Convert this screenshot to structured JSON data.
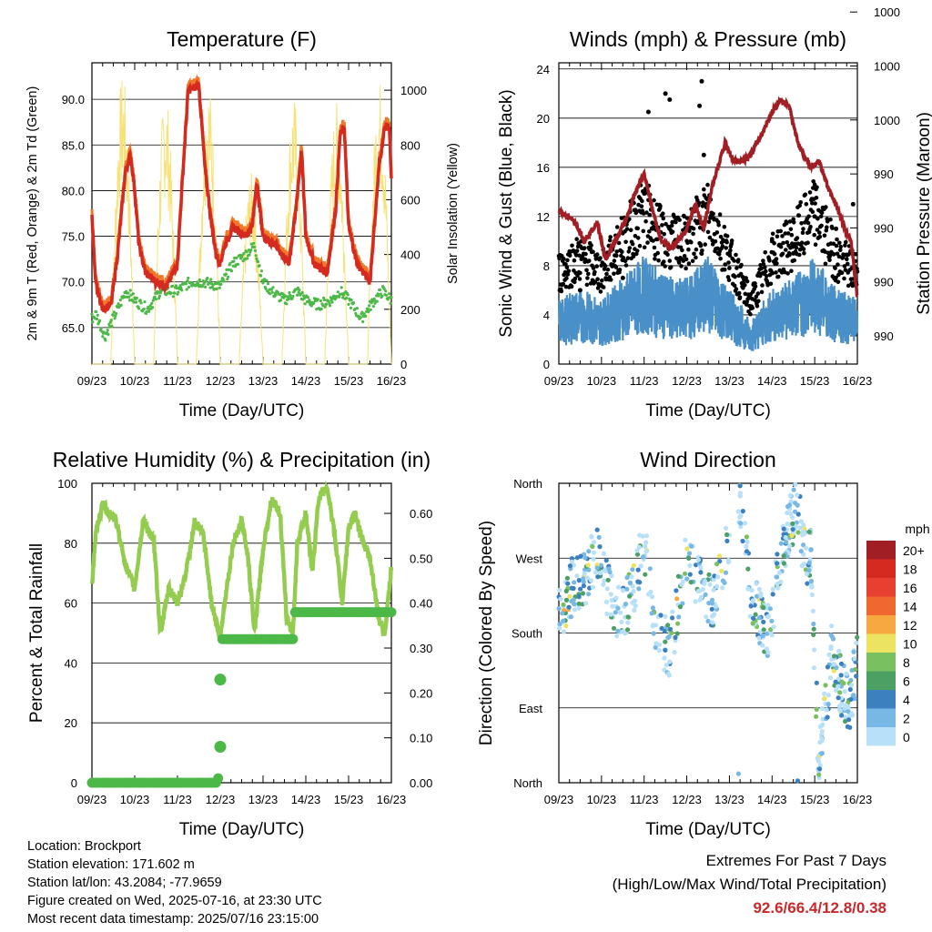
{
  "chart_data": [
    {
      "type": "line",
      "title": "Temperature (F)",
      "xlabel": "Time (Day/UTC)",
      "ylabel_left": "2m & 9m T (Red, Orange) & 2m Td (Green)",
      "ylabel_right": "Solar Insolation (Yellow)",
      "x_ticks": [
        "09/23",
        "10/23",
        "11/23",
        "12/23",
        "13/23",
        "14/23",
        "15/23",
        "16/23"
      ],
      "ylim_left": [
        61.0,
        94.0
      ],
      "ylim_right": [
        0,
        1100
      ],
      "yticks_left": [
        "65.0",
        "70.0",
        "75.0",
        "80.0",
        "85.0",
        "90.0"
      ],
      "yticks_right": [
        "0",
        "200",
        "400",
        "600",
        "800",
        "1000"
      ],
      "colors": {
        "t2m": "#d42a20",
        "t9m": "#f07828",
        "td": "#4cb848",
        "solar": "#f7e27a"
      },
      "series": [
        {
          "name": "2m T",
          "key": "t2m",
          "x": [
            0,
            0.08,
            0.25,
            0.45,
            0.6,
            0.78,
            0.9,
            1.0,
            1.1,
            1.25,
            1.5,
            1.75,
            2.0,
            2.1,
            2.25,
            2.5,
            2.65,
            2.78,
            2.9,
            3.0,
            3.1,
            3.3,
            3.6,
            3.75,
            3.85,
            4.0,
            4.3,
            4.6,
            4.75,
            4.9,
            5.0,
            5.2,
            5.5,
            5.7,
            5.8,
            5.9,
            6.0,
            6.2,
            6.5,
            6.72,
            6.85,
            6.95,
            7.0
          ],
          "values": [
            77.5,
            70,
            67,
            67.5,
            73,
            82,
            84,
            80,
            74,
            71,
            70,
            69.5,
            72,
            80,
            91,
            91.5,
            82,
            77,
            73,
            72,
            74,
            76,
            75,
            76,
            81,
            75,
            74,
            72,
            77,
            84.5,
            75,
            72,
            71,
            78,
            86,
            87,
            76,
            72,
            70,
            83,
            87,
            87,
            81
          ]
        },
        {
          "name": "Solar",
          "key": "solar",
          "peaks": [
            0.72,
            1.72,
            2.72,
            3.72,
            4.72,
            5.72,
            6.72
          ],
          "peak_values": [
            1060,
            1000,
            1040,
            700,
            980,
            960,
            1050
          ]
        },
        {
          "name": "2m Td",
          "key": "td",
          "x": [
            0,
            0.1,
            0.3,
            0.5,
            0.8,
            1.0,
            1.3,
            1.6,
            2.0,
            2.3,
            2.6,
            3.0,
            3.3,
            3.6,
            3.8,
            4.0,
            4.2,
            4.5,
            4.8,
            5.0,
            5.3,
            5.6,
            5.8,
            6.0,
            6.3,
            6.6,
            6.8,
            7.0
          ],
          "values": [
            66,
            66.5,
            64,
            66,
            69,
            68,
            67,
            69,
            69,
            70,
            70,
            69.5,
            72,
            73,
            74,
            70,
            69,
            68,
            69,
            68,
            67.5,
            68,
            69,
            68,
            66,
            68,
            69,
            68
          ]
        }
      ]
    },
    {
      "type": "line",
      "title": "Winds (mph) & Pressure (mb)",
      "xlabel": "Time (Day/UTC)",
      "ylabel_left": "Sonic Wind & Gust (Blue, Black)",
      "ylabel_right": "Station Pressure (Maroon)",
      "x_ticks": [
        "09/23",
        "10/23",
        "11/23",
        "12/23",
        "13/23",
        "14/23",
        "15/23",
        "16/23"
      ],
      "ylim_left": [
        0,
        24.5
      ],
      "yticks_left": [
        "0",
        "4",
        "8",
        "12",
        "16",
        "20",
        "24"
      ],
      "yticks_right": [
        "990",
        "990",
        "990",
        "990",
        "1000",
        "1000",
        "1000"
      ],
      "colors": {
        "wind": "#4a90c8",
        "gust": "#000000",
        "pressure": "#a01e24"
      },
      "series": [
        {
          "name": "Pressure",
          "key": "pressure",
          "x": [
            0,
            0.2,
            0.4,
            0.6,
            0.9,
            1.1,
            1.4,
            1.6,
            1.8,
            2.0,
            2.2,
            2.4,
            2.6,
            2.8,
            3.0,
            3.2,
            3.4,
            3.6,
            3.9,
            4.1,
            4.3,
            4.5,
            4.8,
            5.0,
            5.2,
            5.4,
            5.6,
            5.9,
            6.1,
            6.3,
            6.5,
            6.7,
            6.85,
            6.95,
            7.0
          ],
          "values": [
            12.5,
            12,
            11.5,
            10,
            11.5,
            8.5,
            10.5,
            12,
            14,
            15.5,
            12.5,
            10,
            9.5,
            10,
            11,
            13,
            11,
            14.5,
            18,
            16.5,
            16.5,
            17,
            19,
            20.5,
            21.5,
            21,
            18,
            16,
            16.5,
            14.5,
            13,
            11,
            10,
            7,
            5.5
          ]
        },
        {
          "name": "Sonic Wind",
          "key": "wind",
          "x": [
            0,
            0.5,
            1.0,
            1.5,
            2.0,
            2.5,
            3.0,
            3.5,
            4.0,
            4.5,
            5.0,
            5.5,
            6.0,
            6.5,
            7.0
          ],
          "values": [
            3,
            3.5,
            3,
            4,
            5,
            4,
            4,
            5,
            3.5,
            2,
            3.5,
            4,
            5,
            3.5,
            3
          ]
        },
        {
          "name": "Gust",
          "key": "gust",
          "x": [
            0.5,
            1.5,
            2.1,
            2.5,
            2.6,
            3.3,
            3.35,
            3.4,
            4.0,
            5.0,
            5.5,
            6.0,
            6.5,
            6.9
          ],
          "values": [
            6,
            7,
            20.5,
            22,
            21.5,
            21,
            23,
            17,
            9,
            10,
            9,
            12,
            11,
            13
          ]
        }
      ]
    },
    {
      "type": "line",
      "title": "Relative Humidity (%) & Precipitation (in)",
      "xlabel": "Time (Day/UTC)",
      "ylabel_left": "Percent & Total Rainfall",
      "x_ticks": [
        "09/23",
        "10/23",
        "11/23",
        "12/23",
        "13/23",
        "14/23",
        "15/23",
        "16/23"
      ],
      "ylim_left": [
        0,
        100
      ],
      "ylim_right": [
        0,
        0.667
      ],
      "yticks_left": [
        "0",
        "20",
        "40",
        "60",
        "80",
        "100"
      ],
      "yticks_right": [
        "0.00",
        "0.10",
        "0.20",
        "0.30",
        "0.40",
        "0.50",
        "0.60"
      ],
      "colors": {
        "rh": "#94cc50",
        "precip": "#4cb848"
      },
      "series": [
        {
          "name": "RH",
          "key": "rh",
          "x": [
            0,
            0.1,
            0.25,
            0.4,
            0.55,
            0.8,
            1.0,
            1.2,
            1.45,
            1.6,
            1.8,
            2.0,
            2.2,
            2.4,
            2.6,
            2.8,
            3.0,
            3.1,
            3.3,
            3.5,
            3.65,
            3.8,
            4.0,
            4.2,
            4.4,
            4.55,
            4.7,
            4.8,
            5.0,
            5.15,
            5.3,
            5.5,
            5.7,
            5.85,
            6.0,
            6.15,
            6.3,
            6.5,
            6.7,
            6.85,
            7.0
          ],
          "values": [
            65,
            85,
            93,
            90,
            88,
            72,
            65,
            88,
            80,
            50,
            65,
            60,
            70,
            87,
            83,
            60,
            48,
            60,
            80,
            88,
            75,
            50,
            78,
            95,
            90,
            55,
            50,
            80,
            90,
            70,
            95,
            99,
            80,
            60,
            85,
            90,
            82,
            75,
            55,
            50,
            72
          ]
        },
        {
          "name": "Precipitation",
          "key": "precip",
          "x": [
            0,
            2.9,
            2.95,
            2.97,
            3.0,
            3.02,
            3.05,
            4.7,
            4.73,
            4.76,
            5.5,
            7.0
          ],
          "values": [
            0,
            0,
            0.01,
            0.08,
            0.23,
            0.31,
            0.32,
            0.32,
            0.38,
            0.38,
            0.38,
            0.38
          ]
        }
      ]
    },
    {
      "type": "scatter",
      "title": "Wind Direction",
      "xlabel": "Time (Day/UTC)",
      "ylabel": "Direction (Colored By Speed)",
      "x_ticks": [
        "09/23",
        "10/23",
        "11/23",
        "12/23",
        "13/23",
        "14/23",
        "15/23",
        "16/23"
      ],
      "y_ticks": [
        "North",
        "East",
        "South",
        "West",
        "North"
      ],
      "ylim": [
        0,
        360
      ],
      "legend_unit": "mph",
      "legend_labels": [
        "20+",
        "18",
        "16",
        "14",
        "12",
        "10",
        "8",
        "6",
        "4",
        "2",
        "0"
      ],
      "legend_colors": [
        "#a01e24",
        "#d42a20",
        "#e84030",
        "#f06830",
        "#f8a840",
        "#ece460",
        "#78c060",
        "#4ca064",
        "#3c80c0",
        "#78b8e4",
        "#b8e0f8"
      ],
      "trend": [
        {
          "x": [
            0,
            0.3,
            0.6,
            0.9,
            1.2,
            1.5,
            1.8,
            2.0,
            2.2,
            2.4,
            2.6,
            2.8,
            3.0,
            3.2,
            3.4,
            3.6,
            3.8,
            4.0
          ],
          "dir": [
            200,
            235,
            245,
            280,
            220,
            200,
            245,
            295,
            200,
            170,
            160,
            215,
            270,
            245,
            240,
            210,
            250,
            290
          ]
        },
        {
          "x": [
            4.2,
            4.5,
            4.9,
            5.1,
            5.4,
            5.6,
            5.8,
            5.9,
            6.1,
            6.4,
            6.6,
            6.8,
            7.0
          ],
          "dir": [
            350,
            220,
            180,
            240,
            310,
            330,
            260,
            280,
            20,
            160,
            120,
            90,
            150
          ]
        }
      ]
    }
  ],
  "info": {
    "location": "Location: Brockport",
    "elevation": "Station elevation: 171.602 m",
    "latlon": "Station lat/lon: 43.2084; -77.9659",
    "created": "Figure created on Wed, 2025-07-16, at 23:30 UTC",
    "recent": "Most recent data timestamp: 2025/07/16 23:15:00"
  },
  "extremes": {
    "line1": "Extremes For Past 7 Days",
    "line2": "(High/Low/Max Wind/Total Precipitation)",
    "values": "92.6/66.4/12.8/0.38"
  }
}
